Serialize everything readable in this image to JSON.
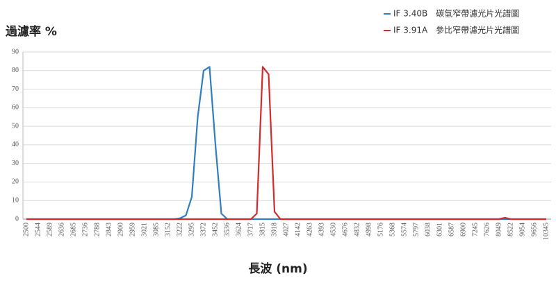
{
  "chart_data": {
    "type": "line",
    "y_label": "過濾率 %",
    "x_label": "長波 (nm)",
    "categories": [
      "2500",
      null,
      "2544",
      null,
      "2589",
      null,
      "2636",
      null,
      "2685",
      null,
      "2736",
      null,
      "2788",
      null,
      "2843",
      null,
      "2900",
      null,
      "2959",
      null,
      "3021",
      null,
      "3085",
      null,
      "3152",
      null,
      "3222",
      null,
      "3295",
      null,
      "3372",
      null,
      "3452",
      null,
      "3536",
      null,
      "3624",
      null,
      "3717",
      null,
      "3815",
      null,
      "3918",
      null,
      "4027",
      null,
      "4142",
      null,
      "4263",
      null,
      "4393",
      null,
      "4530",
      null,
      "4676",
      null,
      "4832",
      null,
      "4998",
      null,
      "5176",
      null,
      "5368",
      null,
      "5574",
      null,
      "5797",
      null,
      "6038",
      null,
      "6301",
      null,
      "6587",
      null,
      "6900",
      null,
      "7245",
      null,
      "7626",
      null,
      "8049",
      null,
      "8522",
      null,
      "9054",
      null,
      "9656",
      null,
      "10345"
    ],
    "series": [
      {
        "name": "IF 3.40B　碳氫窄帶濾光片光譜圖",
        "color": "#2f7ebf",
        "values": [
          0,
          0,
          0,
          0,
          0,
          0,
          0,
          0,
          0,
          0,
          0,
          0,
          0,
          0,
          0,
          0,
          0,
          0,
          0,
          0,
          0,
          0,
          0,
          0,
          0,
          0,
          0.5,
          2,
          12,
          55,
          80,
          82,
          40,
          3,
          0,
          0,
          0,
          0,
          0,
          0,
          0,
          0,
          0,
          0,
          0,
          0,
          0,
          0,
          0,
          0,
          0,
          0,
          0,
          0,
          0,
          0,
          0,
          0,
          0,
          0,
          0,
          0,
          0,
          0,
          0,
          0,
          0,
          0,
          0,
          0,
          0,
          0,
          0,
          0,
          0,
          0,
          0,
          0,
          0,
          0,
          0,
          0,
          0,
          0,
          0,
          0,
          0,
          0,
          0
        ]
      },
      {
        "name": "IF 3.91A　參比窄帶濾光片光譜圖",
        "color": "#d22b2b",
        "values": [
          0,
          0,
          0,
          0,
          0,
          0,
          0,
          0,
          0,
          0,
          0,
          0,
          0,
          0,
          0,
          0,
          0,
          0,
          0,
          0,
          0,
          0,
          0,
          0,
          0,
          0,
          0,
          0,
          0,
          0,
          0,
          0,
          0,
          0,
          0,
          0,
          0,
          0,
          0,
          3,
          82,
          78,
          4,
          0,
          0,
          0,
          0,
          0,
          0,
          0,
          0,
          0,
          0,
          0,
          0,
          0,
          0,
          0,
          0,
          0,
          0,
          0,
          0,
          0,
          0,
          0,
          0,
          0,
          0,
          0,
          0,
          0,
          0,
          0,
          0,
          0,
          0,
          0,
          0,
          0,
          0,
          0.8,
          0,
          0,
          0,
          0,
          0,
          0,
          0
        ]
      }
    ],
    "ylim": [
      0,
      90
    ],
    "yticks": [
      0,
      10,
      20,
      30,
      40,
      50,
      60,
      70,
      80,
      90
    ],
    "grid": true
  }
}
